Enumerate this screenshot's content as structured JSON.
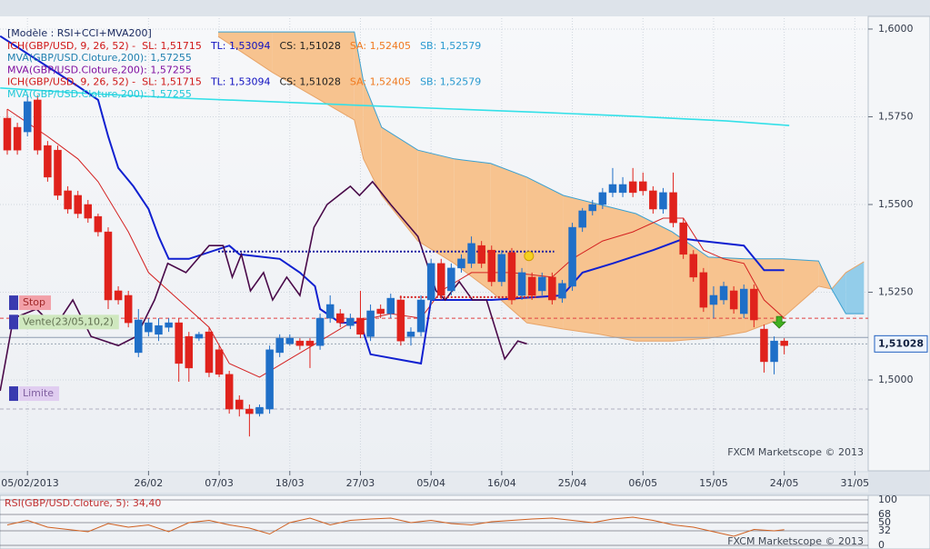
{
  "chart_data": [
    {
      "type": "candlestick",
      "header": "[Modèle : RSI+CCI+MVA200]",
      "legend": [
        [
          {
            "text": "ICH(GBP/USD, 9, 26, 52) -  SL: 1,51715",
            "color": "#d01818"
          },
          {
            "text": "TL: 1,53094",
            "color": "#1010c0"
          },
          {
            "text": "CS: 1,51028",
            "color": "#202020"
          },
          {
            "text": "SA: 1,52405",
            "color": "#f07a20"
          },
          {
            "text": "SB: 1,52579",
            "color": "#2a9ad0"
          }
        ],
        [
          {
            "text": "MVA(GBP/USD.Cloture,200): 1,57255",
            "color": "#2080b0"
          }
        ],
        [
          {
            "text": "MVA(GBP/USD.Cloture,200): 1,57255",
            "color": "#8010a0"
          }
        ],
        [
          {
            "text": "ICH(GBP/USD, 9, 26, 52) -  SL: 1,51715",
            "color": "#d01818"
          },
          {
            "text": "TL: 1,53094",
            "color": "#1010c0"
          },
          {
            "text": "CS: 1,51028",
            "color": "#202020"
          },
          {
            "text": "SA: 1,52405",
            "color": "#f07a20"
          },
          {
            "text": "SB: 1,52579",
            "color": "#2a9ad0"
          }
        ],
        [
          {
            "text": "MVA(GBP/USD.Cloture,200): 1,57255",
            "color": "#20c8d8"
          }
        ]
      ],
      "watermark": "FXCM Marketscope © 2013",
      "xlim": [
        -0.72,
        85.32
      ],
      "xticks": [
        {
          "value": 2,
          "label": "05/02/2013"
        },
        {
          "value": 14,
          "label": "26/02"
        },
        {
          "value": 21,
          "label": "07/03"
        },
        {
          "value": 28,
          "label": "18/03"
        },
        {
          "value": 35,
          "label": "27/03"
        },
        {
          "value": 42,
          "label": "05/04"
        },
        {
          "value": 49,
          "label": "16/04"
        },
        {
          "value": 56,
          "label": "25/04"
        },
        {
          "value": 63,
          "label": "06/05"
        },
        {
          "value": 70,
          "label": "15/05"
        },
        {
          "value": 77,
          "label": "24/05"
        },
        {
          "value": 84,
          "label": "31/05"
        }
      ],
      "ylim": [
        1.4741,
        1.6031
      ],
      "yticks": [
        {
          "value": 1.6,
          "label": "1,6000"
        },
        {
          "value": 1.575,
          "label": "1,5750"
        },
        {
          "value": 1.55,
          "label": "1,5500"
        },
        {
          "value": 1.525,
          "label": "1,5250"
        },
        {
          "value": 1.5,
          "label": "1,5000"
        }
      ],
      "up_color": "#1f6fc8",
      "down_color": "#e0221c",
      "open": [
        1.5746,
        1.572,
        1.5707,
        1.5798,
        1.5668,
        1.5655,
        1.5539,
        1.5526,
        1.55,
        1.5466,
        1.5422,
        1.5254,
        1.5241,
        1.5078,
        1.5137,
        1.513,
        1.515,
        1.5163,
        1.5124,
        1.5119,
        1.5137,
        1.5086,
        1.5016,
        1.4943,
        1.4917,
        1.4904,
        1.4917,
        1.5078,
        1.5103,
        1.5111,
        1.5111,
        1.5098,
        1.5176,
        1.5189,
        1.5155,
        1.5176,
        1.5124,
        1.5202,
        1.5189,
        1.5228,
        1.5124,
        1.5137,
        1.5228,
        1.5332,
        1.5254,
        1.5319,
        1.5332,
        1.5383,
        1.537,
        1.528,
        1.5363,
        1.5241,
        1.5293,
        1.5254,
        1.5293,
        1.5233,
        1.5267,
        1.5435,
        1.5482,
        1.55,
        1.5534,
        1.5534,
        1.5565,
        1.5565,
        1.5539,
        1.5487,
        1.5534,
        1.5448,
        1.5358,
        1.5306,
        1.5215,
        1.5228,
        1.5254,
        1.5189,
        1.5259,
        1.5145,
        1.5052,
        1.5111
      ],
      "high": [
        1.5772,
        1.5733,
        1.5811,
        1.5811,
        1.5681,
        1.5668,
        1.5552,
        1.5539,
        1.5513,
        1.5474,
        1.5435,
        1.5267,
        1.5254,
        1.5202,
        1.5176,
        1.5176,
        1.5176,
        1.5176,
        1.5137,
        1.5137,
        1.515,
        1.5098,
        1.5026,
        1.4956,
        1.493,
        1.493,
        1.5098,
        1.513,
        1.513,
        1.5119,
        1.5119,
        1.5189,
        1.5241,
        1.5202,
        1.5189,
        1.5254,
        1.5215,
        1.5215,
        1.5246,
        1.5241,
        1.515,
        1.5241,
        1.5345,
        1.5345,
        1.5332,
        1.5358,
        1.5409,
        1.5396,
        1.5383,
        1.537,
        1.5376,
        1.5319,
        1.5306,
        1.5306,
        1.5306,
        1.5285,
        1.5448,
        1.549,
        1.5513,
        1.5547,
        1.5604,
        1.5578,
        1.5604,
        1.5591,
        1.5552,
        1.5547,
        1.5591,
        1.5461,
        1.537,
        1.5319,
        1.5267,
        1.528,
        1.5267,
        1.5272,
        1.5272,
        1.5158,
        1.5124,
        1.5119
      ],
      "low": [
        1.5642,
        1.5642,
        1.5694,
        1.5642,
        1.5565,
        1.5513,
        1.5474,
        1.5461,
        1.5448,
        1.5409,
        1.5202,
        1.5215,
        1.515,
        1.5065,
        1.5124,
        1.5111,
        1.5137,
        1.4995,
        1.4995,
        1.5111,
        1.5008,
        1.5008,
        1.4904,
        1.4896,
        1.4839,
        1.4896,
        1.4904,
        1.5065,
        1.5098,
        1.5086,
        1.5034,
        1.5086,
        1.5163,
        1.515,
        1.5145,
        1.5119,
        1.5111,
        1.5176,
        1.5176,
        1.5098,
        1.5098,
        1.5124,
        1.5215,
        1.5228,
        1.5241,
        1.5306,
        1.5319,
        1.5319,
        1.5267,
        1.5267,
        1.5215,
        1.5228,
        1.5228,
        1.5241,
        1.5215,
        1.522,
        1.5254,
        1.5422,
        1.5469,
        1.5487,
        1.5521,
        1.5521,
        1.5521,
        1.5526,
        1.5474,
        1.5474,
        1.5435,
        1.5345,
        1.528,
        1.5194,
        1.5176,
        1.5215,
        1.5189,
        1.5176,
        1.515,
        1.5021,
        1.5016,
        1.5073
      ],
      "close": [
        1.5655,
        1.5655,
        1.5793,
        1.5655,
        1.5578,
        1.5526,
        1.5487,
        1.5474,
        1.5461,
        1.5422,
        1.5228,
        1.5228,
        1.5163,
        1.5171,
        1.5163,
        1.5155,
        1.5163,
        1.5047,
        1.5034,
        1.513,
        1.5021,
        1.5016,
        1.4917,
        1.4917,
        1.4904,
        1.4922,
        1.5086,
        1.5119,
        1.5119,
        1.5098,
        1.5098,
        1.5176,
        1.5215,
        1.5163,
        1.5176,
        1.513,
        1.5197,
        1.5189,
        1.5233,
        1.5111,
        1.5137,
        1.5228,
        1.5332,
        1.5241,
        1.5319,
        1.5345,
        1.5389,
        1.5332,
        1.528,
        1.5358,
        1.5228,
        1.5306,
        1.5241,
        1.5293,
        1.5228,
        1.5275,
        1.5435,
        1.5482,
        1.55,
        1.5534,
        1.5557,
        1.5557,
        1.5534,
        1.5539,
        1.5487,
        1.5534,
        1.5448,
        1.5358,
        1.5293,
        1.5207,
        1.5241,
        1.5267,
        1.5202,
        1.5259,
        1.5171,
        1.5052,
        1.5111,
        1.5098
      ],
      "cloud": {
        "color": "#f7c38f",
        "color2": "#93cdea",
        "sa_color": "#e8a468",
        "sb_color": "#3aa0d0",
        "x": [
          20.9,
          26.3,
          34.4,
          35.3,
          37.1,
          40.7,
          44.3,
          47.9,
          51.5,
          55.1,
          58.7,
          62.3,
          65.9,
          69.5,
          73.2,
          76.8,
          80.4,
          81.7,
          83.1,
          84.9
        ],
        "sb": [
          1.5992,
          1.5992,
          1.5992,
          1.585,
          1.572,
          1.5655,
          1.563,
          1.5617,
          1.5578,
          1.5526,
          1.55,
          1.5474,
          1.5422,
          1.535,
          1.5345,
          1.5345,
          1.5339,
          1.5259,
          1.5189,
          1.5189
        ],
        "sa": [
          1.5979,
          1.5876,
          1.5741,
          1.563,
          1.5526,
          1.5396,
          1.5332,
          1.5254,
          1.5163,
          1.5145,
          1.513,
          1.5111,
          1.5111,
          1.5119,
          1.5137,
          1.5176,
          1.5267,
          1.5259,
          1.5306,
          1.5337
        ]
      },
      "lines": [
        {
          "color": "#33e0e8",
          "width": 1.6,
          "x": [
            -0.7,
            8.3,
            17.3,
            26.3,
            35.3,
            44.3,
            53.3,
            62.3,
            71.3,
            77.5
          ],
          "values": [
            1.5832,
            1.5816,
            1.5803,
            1.5793,
            1.5782,
            1.5772,
            1.5762,
            1.5751,
            1.5738,
            1.5725
          ]
        },
        {
          "color": "#d42020",
          "width": 1,
          "x": [
            0,
            4,
            7,
            9,
            12,
            14,
            16,
            18,
            20,
            22,
            25,
            28,
            31,
            34,
            38,
            41,
            43,
            46,
            50,
            54,
            56,
            59,
            62,
            65,
            67,
            69,
            71,
            73,
            75,
            77
          ],
          "values": [
            1.5772,
            1.5694,
            1.563,
            1.5565,
            1.5422,
            1.5306,
            1.5254,
            1.5202,
            1.515,
            1.5047,
            1.5008,
            1.506,
            1.5111,
            1.5163,
            1.5189,
            1.5176,
            1.5254,
            1.5306,
            1.5306,
            1.5293,
            1.5345,
            1.5396,
            1.5422,
            1.5461,
            1.5461,
            1.537,
            1.5345,
            1.5332,
            1.5228,
            1.5176
          ]
        },
        {
          "color": "#1020d0",
          "width": 2,
          "x": [
            -0.7,
            7,
            9,
            10,
            11,
            12.5,
            14,
            15,
            16,
            18,
            22,
            23,
            27,
            29,
            30.5,
            31,
            33,
            35,
            36,
            41,
            42,
            48,
            55,
            57,
            60,
            64,
            67,
            73,
            75,
            77
          ],
          "values": [
            1.598,
            1.5837,
            1.5798,
            1.5694,
            1.5604,
            1.5552,
            1.5487,
            1.5409,
            1.5345,
            1.5345,
            1.5383,
            1.5358,
            1.5345,
            1.5306,
            1.5267,
            1.5202,
            1.5163,
            1.5163,
            1.5073,
            1.5047,
            1.5228,
            1.5228,
            1.5241,
            1.5306,
            1.5332,
            1.537,
            1.5402,
            1.5383,
            1.5313,
            1.5313
          ]
        },
        {
          "color": "#4a0a4a",
          "width": 1.6,
          "x": [
            -0.7,
            0.6,
            2.9,
            4.7,
            6.5,
            8.3,
            11,
            12.8,
            14.6,
            15.9,
            17.7,
            20,
            21.4,
            22.3,
            23.2,
            24.1,
            25.4,
            26.3,
            27.7,
            29,
            30.4,
            31.7,
            34,
            34.9,
            36.2,
            38,
            40.7,
            42.5,
            43.4,
            44.8,
            46.1,
            47.5,
            49.3,
            50.6,
            51.5
          ],
          "values": [
            1.4969,
            1.5176,
            1.5202,
            1.515,
            1.5228,
            1.5124,
            1.5098,
            1.5124,
            1.5228,
            1.5332,
            1.5306,
            1.5383,
            1.5383,
            1.5293,
            1.5358,
            1.5254,
            1.5306,
            1.5228,
            1.5293,
            1.5241,
            1.5435,
            1.55,
            1.5552,
            1.5526,
            1.5565,
            1.55,
            1.5409,
            1.5254,
            1.5228,
            1.528,
            1.5228,
            1.5228,
            1.506,
            1.5111,
            1.5103
          ]
        },
        {
          "color": "#1a1aa0",
          "width": 2,
          "style": "dotted",
          "x": [
            20.9,
            54.2
          ],
          "values": [
            1.5366,
            1.5366
          ]
        },
        {
          "color": "#d42020",
          "width": 2,
          "style": "dotted",
          "x": [
            38.9,
            52.4
          ],
          "values": [
            1.5236,
            1.5236
          ]
        }
      ],
      "levels": [
        {
          "label": "Stop",
          "value": 1.5176,
          "color": "#e04040",
          "dash": true,
          "bg": "#f2a0a8",
          "text_color": "#a02828"
        },
        {
          "label": "Vente(23/05,10,2)",
          "value": 1.5121,
          "color": "#8e9cb0",
          "dash": false,
          "bg": "#cfe8bf",
          "text_color": "#607050"
        },
        {
          "label": "Limite",
          "value": 1.4917,
          "color": "#b0b0c0",
          "dash": true,
          "bg": "#e0cdf0",
          "text_color": "#8060a0"
        }
      ],
      "last_price": {
        "value": 1.51028,
        "label": "1,51028"
      },
      "signals": [
        {
          "x": 51.7,
          "value": 1.5353,
          "color": "#f5d020",
          "shape": "circle"
        },
        {
          "x": 76.5,
          "value": 1.5163,
          "color": "#40b020",
          "shape": "arrow"
        }
      ]
    },
    {
      "type": "line",
      "title": "RSI(GBP/USD.Cloture, 5): 34,40",
      "watermark": "FXCM Marketscope © 2013",
      "color": "#d06020",
      "xlim": [
        -0.72,
        85.32
      ],
      "ylim": [
        0,
        100
      ],
      "yticks": [
        100,
        68,
        50,
        32,
        0
      ],
      "x": [
        0,
        2,
        4,
        6,
        8,
        10,
        12,
        14,
        16,
        18,
        20,
        22,
        24,
        26,
        28,
        30,
        32,
        34,
        36,
        38,
        40,
        42,
        44,
        46,
        48,
        50,
        52,
        54,
        56,
        58,
        60,
        62,
        64,
        66,
        68,
        70,
        72,
        74,
        76,
        77
      ],
      "values": [
        45,
        55,
        40,
        35,
        30,
        48,
        40,
        45,
        30,
        50,
        55,
        45,
        38,
        25,
        50,
        60,
        45,
        55,
        58,
        60,
        50,
        55,
        48,
        45,
        52,
        55,
        58,
        60,
        55,
        50,
        58,
        62,
        55,
        45,
        40,
        30,
        20,
        35,
        32,
        34.4
      ]
    }
  ]
}
